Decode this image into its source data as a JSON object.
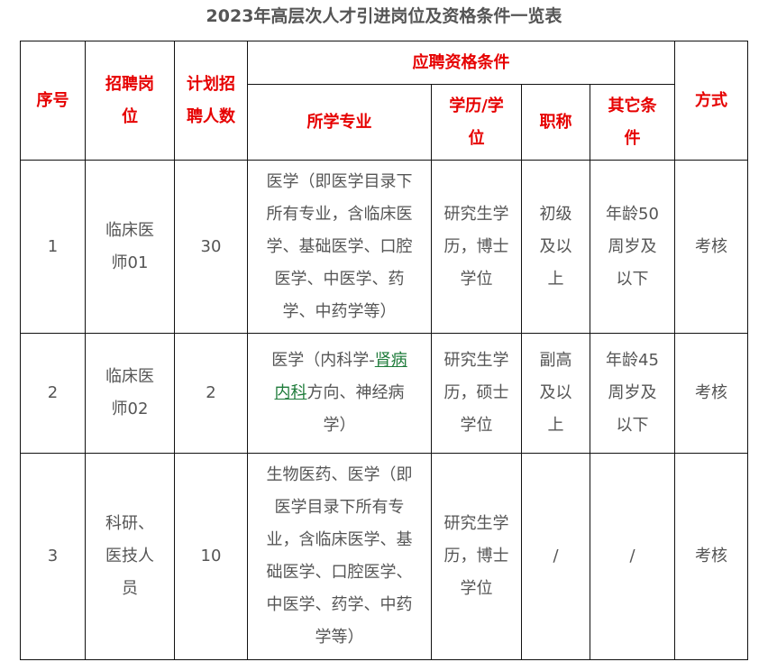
{
  "title": "2023年高层次人才引进岗位及资格条件一览表",
  "headers": {
    "seq": "序号",
    "position": "招聘岗\n位",
    "count": "计划招\n聘人数",
    "qualifications": "应聘资格条件",
    "major": "所学专业",
    "degree": "学历/学\n位",
    "title": "职称",
    "other": "其它条\n件",
    "method": "方式"
  },
  "rows": [
    {
      "seq": "1",
      "position": "临床医\n师01",
      "count": "30",
      "major": "医学（即医学目录下\n所有专业，含临床医\n学、基础医学、口腔\n医学、中医学、药\n学、中药学等）",
      "degree": "研究生学\n历，博士\n学位",
      "title": "初级\n及以\n上",
      "other": "年龄50\n周岁及\n以下",
      "method": "考核"
    },
    {
      "seq": "2",
      "position": "临床医\n师02",
      "count": "2",
      "major_before": "医学（内科学-",
      "major_link": "肾病\n内科",
      "major_after": "方向、神经病\n学）",
      "degree": "研究生学\n历，硕士\n学位",
      "title": "副高\n及以\n上",
      "other": "年龄45\n周岁及\n以下",
      "method": "考核"
    },
    {
      "seq": "3",
      "position": "科研、\n医技人\n员",
      "count": "10",
      "major": "生物医药、医学（即\n医学目录下所有专\n业，含临床医学、基\n础医学、口腔医学、\n中医学、药学、中药\n学等）",
      "degree": "研究生学\n历，博士\n学位",
      "title": "/",
      "other": "/",
      "method": "考核"
    }
  ],
  "colors": {
    "header": "#e60000",
    "text": "#555555",
    "link": "#1e7b3a"
  }
}
